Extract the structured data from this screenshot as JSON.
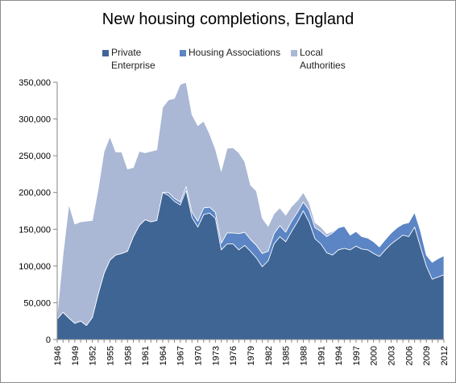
{
  "chart_data": {
    "type": "area",
    "stacked": true,
    "title": "New housing completions, England",
    "x": [
      1946,
      1947,
      1948,
      1949,
      1950,
      1951,
      1952,
      1953,
      1954,
      1955,
      1956,
      1957,
      1958,
      1959,
      1960,
      1961,
      1962,
      1963,
      1964,
      1965,
      1966,
      1967,
      1968,
      1969,
      1970,
      1971,
      1972,
      1973,
      1974,
      1975,
      1976,
      1977,
      1978,
      1979,
      1980,
      1981,
      1982,
      1983,
      1984,
      1985,
      1986,
      1987,
      1988,
      1989,
      1990,
      1991,
      1992,
      1993,
      1994,
      1995,
      1996,
      1997,
      1998,
      1999,
      2000,
      2001,
      2002,
      2003,
      2004,
      2005,
      2006,
      2007,
      2008,
      2009,
      2010,
      2011,
      2012
    ],
    "series": [
      {
        "name": "Private Enterprise",
        "color": "#3f6595",
        "values": [
          28000,
          37000,
          29000,
          22000,
          25000,
          19000,
          30000,
          62000,
          90000,
          108000,
          115000,
          117000,
          120000,
          140000,
          155000,
          163000,
          160000,
          162000,
          200000,
          196000,
          188000,
          183000,
          203000,
          166000,
          153000,
          170000,
          172000,
          165000,
          122000,
          130000,
          130000,
          122000,
          128000,
          120000,
          111000,
          99000,
          107000,
          130000,
          140000,
          133000,
          147000,
          160000,
          175000,
          160000,
          137000,
          130000,
          118000,
          115000,
          122000,
          124000,
          122000,
          127000,
          123000,
          122000,
          117000,
          113000,
          122000,
          130000,
          136000,
          142000,
          140000,
          153000,
          126000,
          100000,
          82000,
          85000,
          88000
        ]
      },
      {
        "name": "Housing Associations",
        "color": "#5b85c4",
        "values": [
          0,
          0,
          0,
          0,
          0,
          0,
          0,
          0,
          0,
          0,
          0,
          0,
          0,
          0,
          0,
          0,
          0,
          0,
          0,
          4000,
          4000,
          4000,
          5000,
          7000,
          8000,
          9000,
          8000,
          8000,
          9000,
          15000,
          15000,
          22000,
          18000,
          16000,
          17000,
          18000,
          13000,
          14000,
          15000,
          13000,
          14000,
          13000,
          12000,
          16000,
          15000,
          17000,
          22000,
          30000,
          30000,
          30000,
          20000,
          20000,
          17000,
          16000,
          16000,
          13000,
          14000,
          15000,
          16000,
          15000,
          19000,
          20000,
          22000,
          15000,
          23000,
          25000,
          26000
        ]
      },
      {
        "name": "Local Authorities",
        "color": "#aab8d5",
        "values": [
          5000,
          79000,
          155000,
          135000,
          135000,
          142000,
          132000,
          143000,
          166000,
          168000,
          140000,
          138000,
          112000,
          94000,
          101000,
          91000,
          96000,
          96000,
          116000,
          126000,
          136000,
          160000,
          142000,
          133000,
          130000,
          118000,
          100000,
          86000,
          98000,
          115000,
          116000,
          110000,
          96000,
          74000,
          74000,
          48000,
          34000,
          27000,
          24000,
          23000,
          20000,
          16000,
          13000,
          10000,
          7000,
          6000,
          4000,
          2000,
          1000,
          1000,
          0,
          0,
          0,
          0,
          0,
          0,
          0,
          0,
          0,
          0,
          0,
          0,
          0,
          0,
          0,
          0,
          0
        ]
      }
    ],
    "ylim": [
      0,
      350000
    ],
    "yticks": [
      "0",
      "50,000",
      "100,000",
      "150,000",
      "200,000",
      "250,000",
      "300,000",
      "350,000"
    ],
    "xtick_labels": [
      "1946",
      "1949",
      "1952",
      "1955",
      "1958",
      "1961",
      "1964",
      "1967",
      "1970",
      "1973",
      "1976",
      "1979",
      "1982",
      "1985",
      "1988",
      "1991",
      "1994",
      "1997",
      "2000",
      "2003",
      "2006",
      "2009",
      "2012"
    ],
    "legend_position": "top",
    "grid": false
  }
}
